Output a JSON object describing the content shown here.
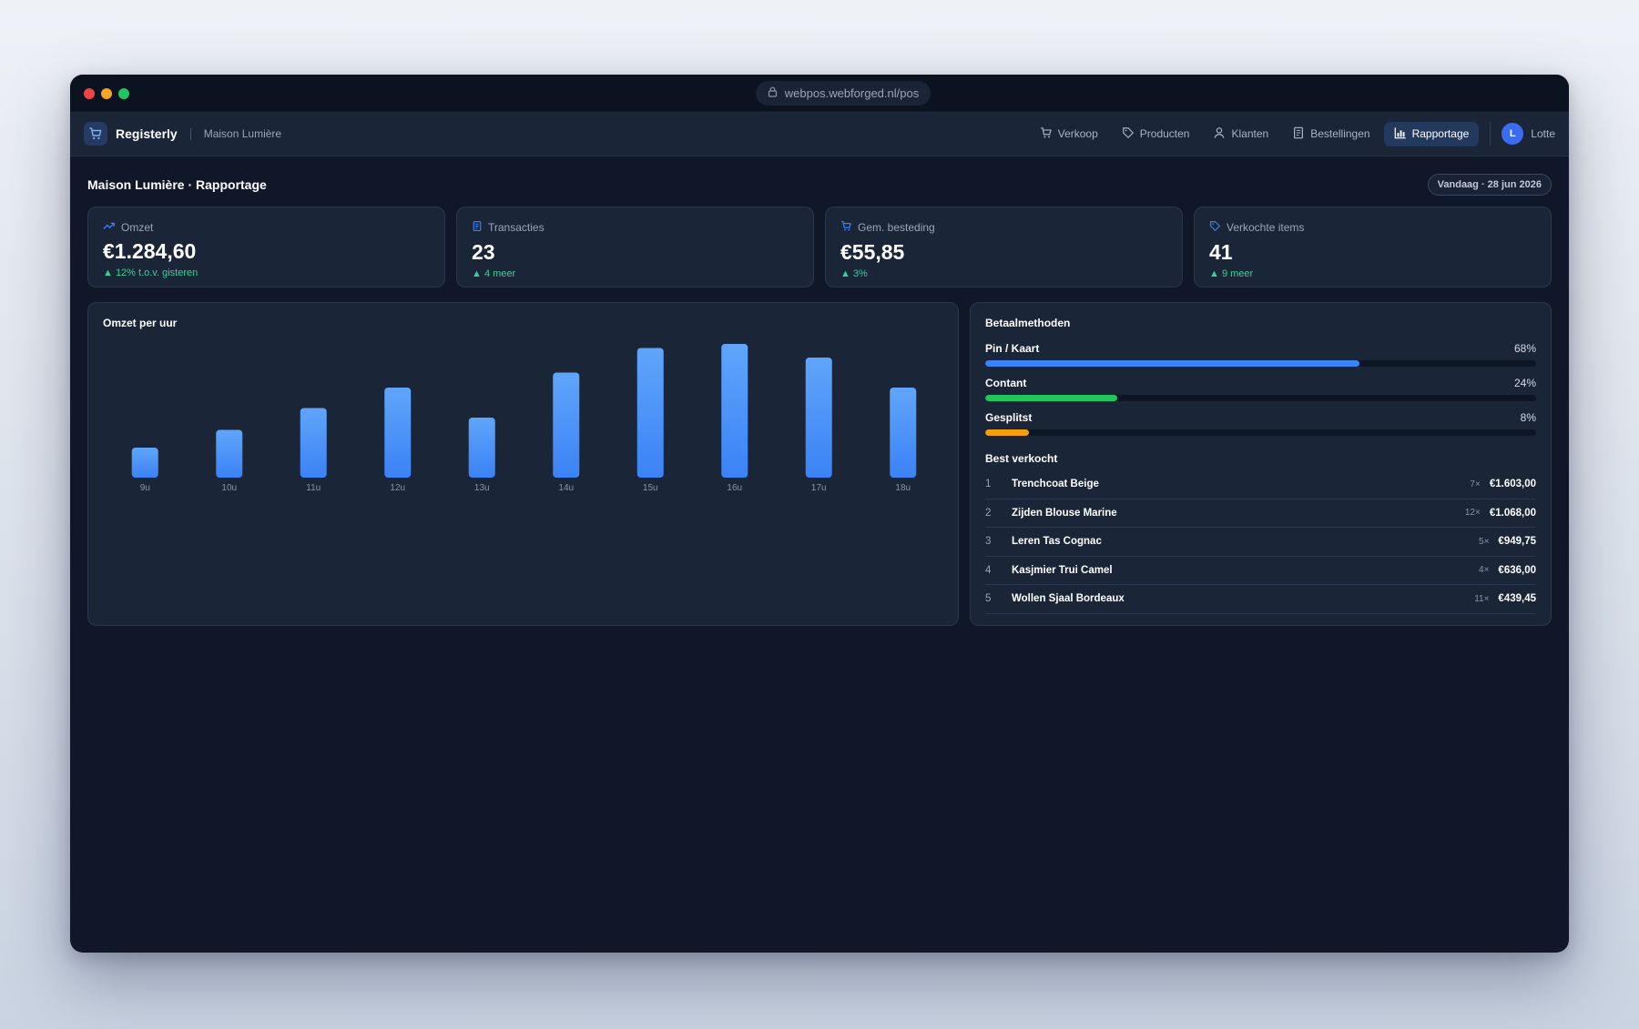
{
  "browser": {
    "url": "webpos.webforged.nl/pos"
  },
  "app": {
    "name": "Registerly",
    "store": "Maison Lumière"
  },
  "nav": {
    "items": [
      {
        "label": "Verkoop",
        "icon": "cart-icon"
      },
      {
        "label": "Producten",
        "icon": "tag-icon"
      },
      {
        "label": "Klanten",
        "icon": "user-icon"
      },
      {
        "label": "Bestellingen",
        "icon": "receipt-icon"
      },
      {
        "label": "Rapportage",
        "icon": "bar-chart-icon",
        "active": true
      }
    ],
    "user": {
      "initial": "L",
      "name": "Lotte"
    }
  },
  "page": {
    "title": "Maison Lumière · Rapportage",
    "date": "Vandaag · 28 jun 2026"
  },
  "kpis": [
    {
      "label": "Omzet",
      "value": "€1.284,60",
      "delta": "▲ 12% t.o.v. gisteren",
      "icon": "trending-up-icon"
    },
    {
      "label": "Transacties",
      "value": "23",
      "delta": "▲ 4 meer",
      "icon": "receipt-icon"
    },
    {
      "label": "Gem. besteding",
      "value": "€55,85",
      "delta": "▲ 3%",
      "icon": "cart-icon"
    },
    {
      "label": "Verkochte items",
      "value": "41",
      "delta": "▲ 9 meer",
      "icon": "tag-icon"
    }
  ],
  "hourly": {
    "title": "Omzet per uur",
    "chart_data": {
      "type": "bar",
      "title": "Omzet per uur",
      "categories": [
        "9u",
        "10u",
        "11u",
        "12u",
        "13u",
        "14u",
        "15u",
        "16u",
        "17u",
        "18u"
      ],
      "values": [
        22,
        35,
        51,
        66,
        44,
        77,
        95,
        98,
        88,
        66
      ],
      "ylim": [
        0,
        100
      ],
      "color": "#3b82f6"
    }
  },
  "payments": {
    "title": "Betaalmethoden",
    "items": [
      {
        "name": "Pin / Kaart",
        "pct_label": "68%",
        "value": 68,
        "color": "#3b82f6"
      },
      {
        "name": "Contant",
        "pct_label": "24%",
        "value": 24,
        "color": "#22c55e"
      },
      {
        "name": "Gesplitst",
        "pct_label": "8%",
        "value": 8,
        "color": "#f59e0b"
      }
    ]
  },
  "best_sellers": {
    "title": "Best verkocht",
    "items": [
      {
        "rank": "1",
        "name": "Trenchcoat Beige",
        "qty": "7×",
        "amount": "€1.603,00"
      },
      {
        "rank": "2",
        "name": "Zijden Blouse Marine",
        "qty": "12×",
        "amount": "€1.068,00"
      },
      {
        "rank": "3",
        "name": "Leren Tas Cognac",
        "qty": "5×",
        "amount": "€949,75"
      },
      {
        "rank": "4",
        "name": "Kasjmier Trui Camel",
        "qty": "4×",
        "amount": "€636,00"
      },
      {
        "rank": "5",
        "name": "Wollen Sjaal Bordeaux",
        "qty": "11×",
        "amount": "€439,45"
      }
    ]
  },
  "colors": {
    "accent": "#3b82f6",
    "positive": "#34d399",
    "background": "#0f1729",
    "panel": "#1b2538"
  }
}
